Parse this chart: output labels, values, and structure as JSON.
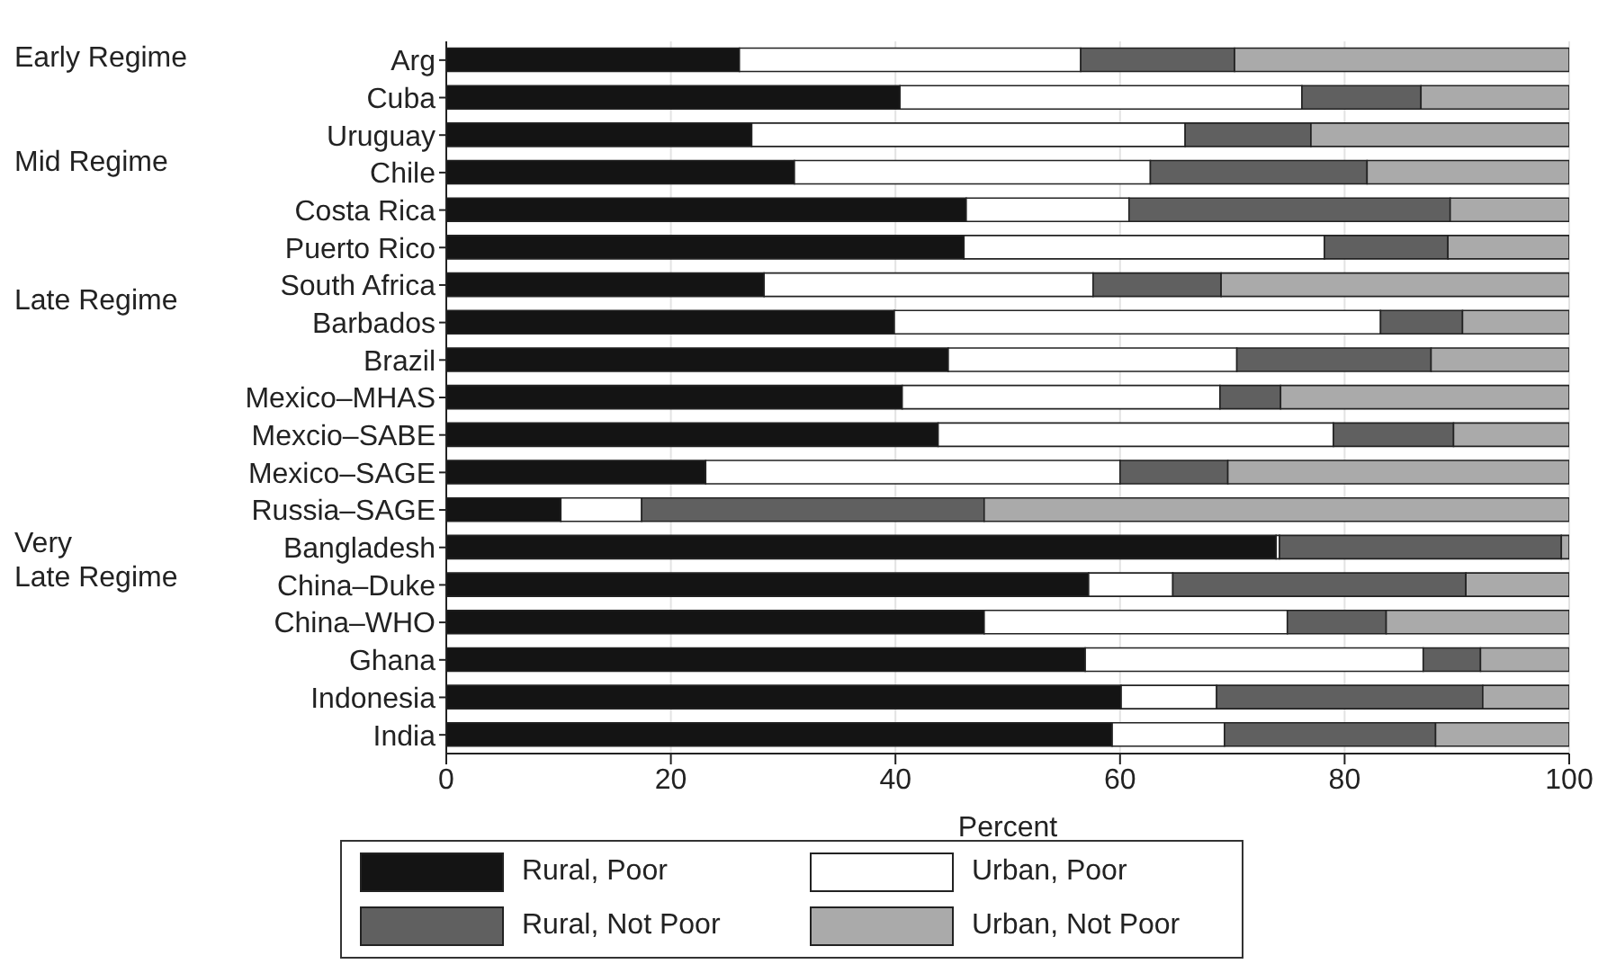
{
  "chart_data": {
    "type": "bar",
    "orientation": "horizontal",
    "stacked": true,
    "xlabel": "Percent",
    "xlim": [
      0,
      100
    ],
    "xticks": [
      0,
      20,
      40,
      60,
      80,
      100
    ],
    "grid": "x",
    "legend": "bottom",
    "categories": [
      "Arg",
      "Cuba",
      "Uruguay",
      "Chile",
      "Costa Rica",
      "Puerto Rico",
      "South Africa",
      "Barbados",
      "Brazil",
      "Mexico–MHAS",
      "Mexcio–SABE",
      "Mexico–SAGE",
      "Russia–SAGE",
      "Bangladesh",
      "China–Duke",
      "China–WHO",
      "Ghana",
      "Indonesia",
      "India"
    ],
    "series": [
      {
        "name": "Rural, Poor",
        "color": "#141414",
        "values": [
          26.1,
          40.4,
          27.2,
          31.0,
          46.3,
          46.1,
          28.3,
          39.9,
          44.7,
          40.6,
          43.8,
          23.1,
          10.2,
          73.9,
          57.2,
          47.9,
          56.9,
          60.1,
          59.3
        ]
      },
      {
        "name": "Urban, Poor",
        "color": "#ffffff",
        "values": [
          30.4,
          35.8,
          38.6,
          31.7,
          14.5,
          32.1,
          29.3,
          43.3,
          25.7,
          28.3,
          35.2,
          36.9,
          7.2,
          0.3,
          7.5,
          27.0,
          30.1,
          8.5,
          10.0
        ]
      },
      {
        "name": "Rural, Not Poor",
        "color": "#606060",
        "values": [
          13.7,
          10.6,
          11.2,
          19.3,
          28.6,
          11.0,
          11.4,
          7.3,
          17.3,
          5.4,
          10.7,
          9.6,
          30.5,
          25.1,
          26.1,
          8.8,
          5.1,
          23.7,
          18.8
        ]
      },
      {
        "name": "Urban, Not Poor",
        "color": "#aaaaaa",
        "values": [
          29.8,
          13.2,
          23.0,
          18.0,
          10.6,
          10.8,
          31.0,
          9.5,
          12.3,
          25.7,
          10.3,
          30.4,
          52.1,
          0.7,
          9.2,
          16.3,
          7.9,
          7.7,
          11.9
        ]
      }
    ],
    "annotations": [
      "Early Regime",
      "Mid Regime",
      "Late Regime",
      "Very\nLate Regime"
    ]
  }
}
